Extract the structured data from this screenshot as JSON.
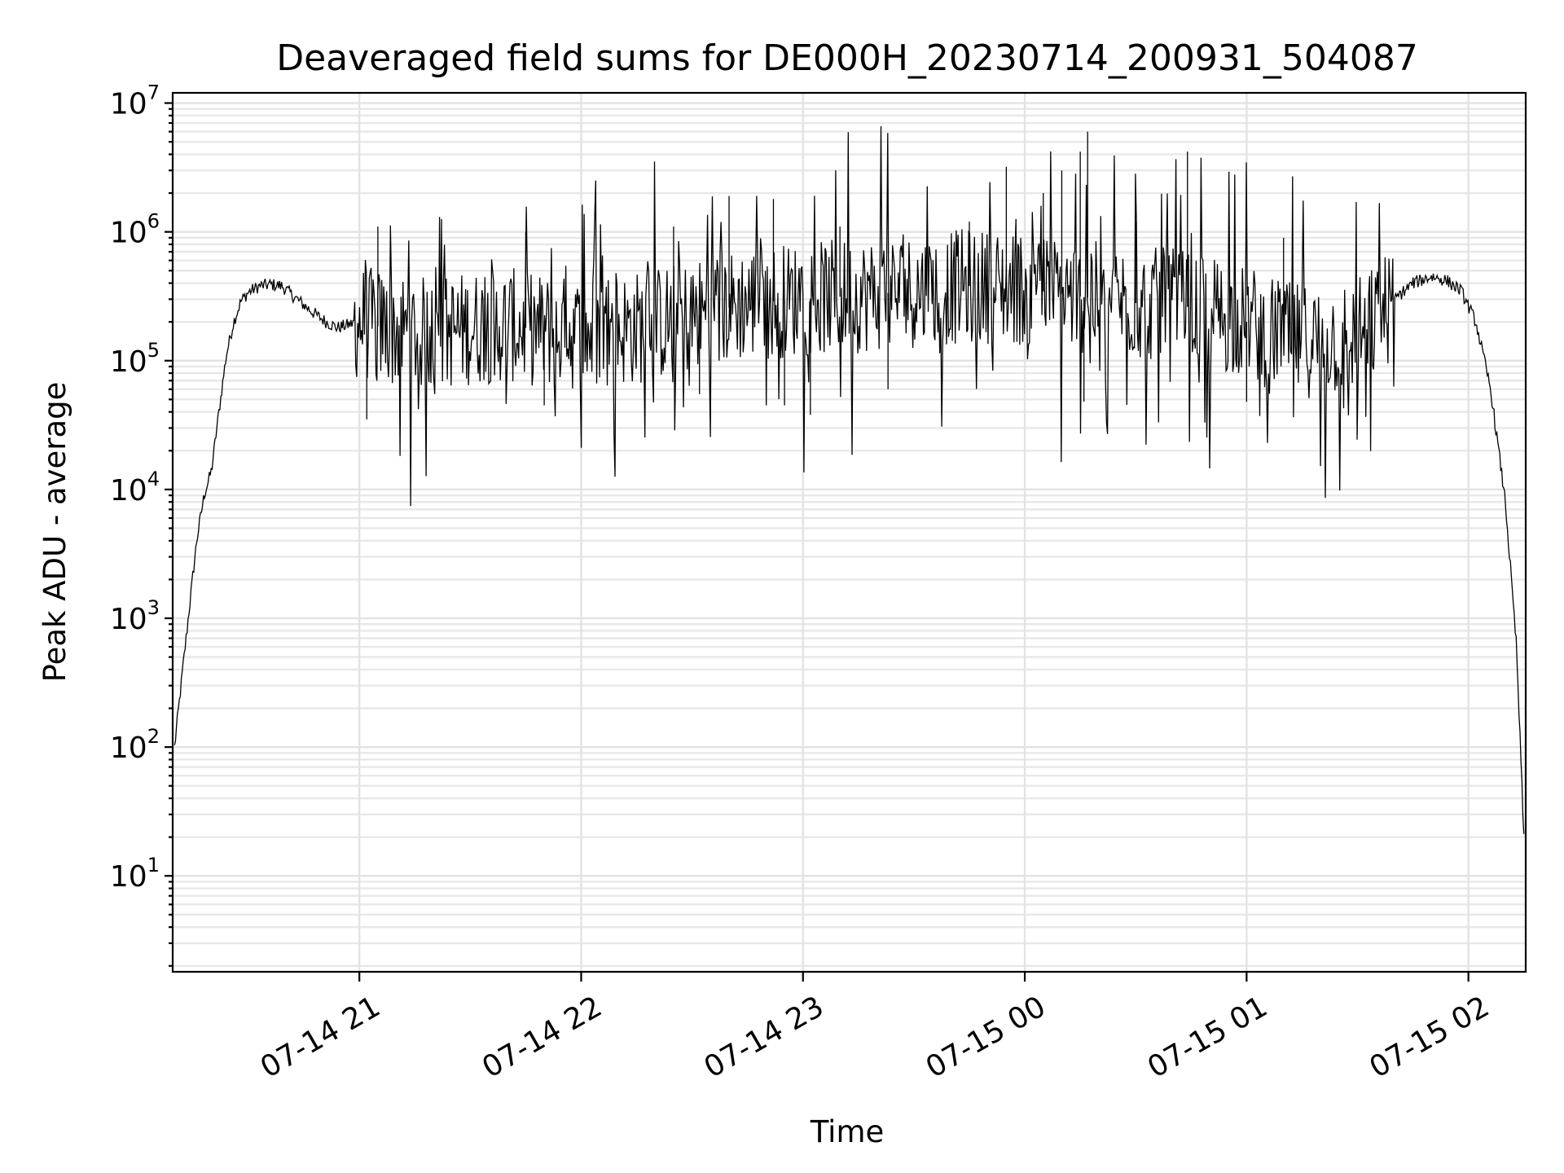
{
  "chart_data": {
    "type": "line",
    "title": "Deaveraged field sums for DE000H_20230714_200931_504087",
    "xlabel": "Time",
    "ylabel": "Peak ADU - average",
    "yscale": "log",
    "ylim": [
      1.8,
      12000000
    ],
    "xlim": [
      "2023-07-14 20:09:30",
      "2023-07-15 02:15:30"
    ],
    "grid": true,
    "grid_minor": true,
    "x_ticks": [
      {
        "t": "2023-07-14 21:00",
        "label": "07-14 21"
      },
      {
        "t": "2023-07-14 22:00",
        "label": "07-14 22"
      },
      {
        "t": "2023-07-14 23:00",
        "label": "07-14 23"
      },
      {
        "t": "2023-07-15 00:00",
        "label": "07-15 00"
      },
      {
        "t": "2023-07-15 01:00",
        "label": "07-15 01"
      },
      {
        "t": "2023-07-15 02:00",
        "label": "07-15 02"
      }
    ],
    "y_ticks": [
      {
        "value": 10,
        "base": "10",
        "exp": "1"
      },
      {
        "value": 100,
        "base": "10",
        "exp": "2"
      },
      {
        "value": 1000,
        "base": "10",
        "exp": "3"
      },
      {
        "value": 10000,
        "base": "10",
        "exp": "4"
      },
      {
        "value": 100000,
        "base": "10",
        "exp": "5"
      },
      {
        "value": 1000000,
        "base": "10",
        "exp": "6"
      },
      {
        "value": 10000000,
        "base": "10",
        "exp": "7"
      }
    ],
    "series": [
      {
        "color": "#000000",
        "x": [
          "2023-07-14 20:10",
          "2023-07-14 20:12",
          "2023-07-14 20:14",
          "2023-07-14 20:16",
          "2023-07-14 20:18",
          "2023-07-14 20:20",
          "2023-07-14 20:22",
          "2023-07-14 20:24",
          "2023-07-14 20:26",
          "2023-07-14 20:28",
          "2023-07-14 20:30",
          "2023-07-14 20:33",
          "2023-07-14 20:36",
          "2023-07-14 20:39",
          "2023-07-14 20:42",
          "2023-07-14 20:45",
          "2023-07-14 20:48",
          "2023-07-14 20:51",
          "2023-07-14 20:54",
          "2023-07-14 20:57",
          "2023-07-14 21:00",
          "2023-07-14 21:10",
          "2023-07-14 21:20",
          "2023-07-14 21:30",
          "2023-07-14 21:40",
          "2023-07-14 21:50",
          "2023-07-14 22:00",
          "2023-07-14 22:15",
          "2023-07-14 22:30",
          "2023-07-14 22:45",
          "2023-07-14 23:00",
          "2023-07-14 23:15",
          "2023-07-14 23:30",
          "2023-07-14 23:45",
          "2023-07-15 00:00",
          "2023-07-15 00:10",
          "2023-07-15 00:20",
          "2023-07-15 00:30",
          "2023-07-15 00:45",
          "2023-07-15 01:00",
          "2023-07-15 01:10",
          "2023-07-15 01:20",
          "2023-07-15 01:30",
          "2023-07-15 01:35",
          "2023-07-15 01:40",
          "2023-07-15 01:45",
          "2023-07-15 01:50",
          "2023-07-15 01:54",
          "2023-07-15 01:58",
          "2023-07-15 02:02",
          "2023-07-15 02:06",
          "2023-07-15 02:10",
          "2023-07-15 02:13",
          "2023-07-15 02:15"
        ],
        "y": [
          100,
          350,
          1200,
          4000,
          9000,
          14000,
          40000,
          110000,
          200000,
          290000,
          340000,
          380000,
          390000,
          380000,
          320000,
          270000,
          230000,
          200000,
          180000,
          190000,
          200000,
          170000,
          160000,
          180000,
          190000,
          170000,
          160000,
          180000,
          220000,
          280000,
          300000,
          320000,
          350000,
          380000,
          360000,
          330000,
          300000,
          280000,
          260000,
          200000,
          150000,
          140000,
          160000,
          200000,
          300000,
          400000,
          450000,
          420000,
          350000,
          200000,
          60000,
          8000,
          600,
          20
        ],
        "spikes": [
          {
            "x": "2023-07-14 21:05",
            "y": 1100000
          },
          {
            "x": "2023-07-14 21:02",
            "y": 35000
          },
          {
            "x": "2023-07-14 21:45",
            "y": 1000000
          },
          {
            "x": "2023-07-14 21:50",
            "y": 45000
          },
          {
            "x": "2023-07-14 22:25",
            "y": 1100000
          },
          {
            "x": "2023-07-14 22:32",
            "y": 55000
          },
          {
            "x": "2023-07-14 22:40",
            "y": 1900000
          },
          {
            "x": "2023-07-14 22:52",
            "y": 1800000
          },
          {
            "x": "2023-07-14 22:55",
            "y": 45000
          },
          {
            "x": "2023-07-14 23:02",
            "y": 38000
          },
          {
            "x": "2023-07-14 23:10",
            "y": 1100000
          },
          {
            "x": "2023-07-14 23:23",
            "y": 60000
          },
          {
            "x": "2023-07-14 23:45",
            "y": 1200000
          },
          {
            "x": "2023-07-14 23:55",
            "y": 3200000
          },
          {
            "x": "2023-07-15 00:05",
            "y": 2000000
          },
          {
            "x": "2023-07-15 00:10",
            "y": 3000000
          },
          {
            "x": "2023-07-15 00:15",
            "y": 4200000
          },
          {
            "x": "2023-07-15 00:17",
            "y": 6000000
          },
          {
            "x": "2023-07-15 00:16",
            "y": 48000
          },
          {
            "x": "2023-07-15 00:30",
            "y": 1200000
          },
          {
            "x": "2023-07-15 00:44",
            "y": 4200000
          },
          {
            "x": "2023-07-15 01:00",
            "y": 48000
          },
          {
            "x": "2023-07-15 01:10",
            "y": 900000
          }
        ]
      }
    ]
  }
}
